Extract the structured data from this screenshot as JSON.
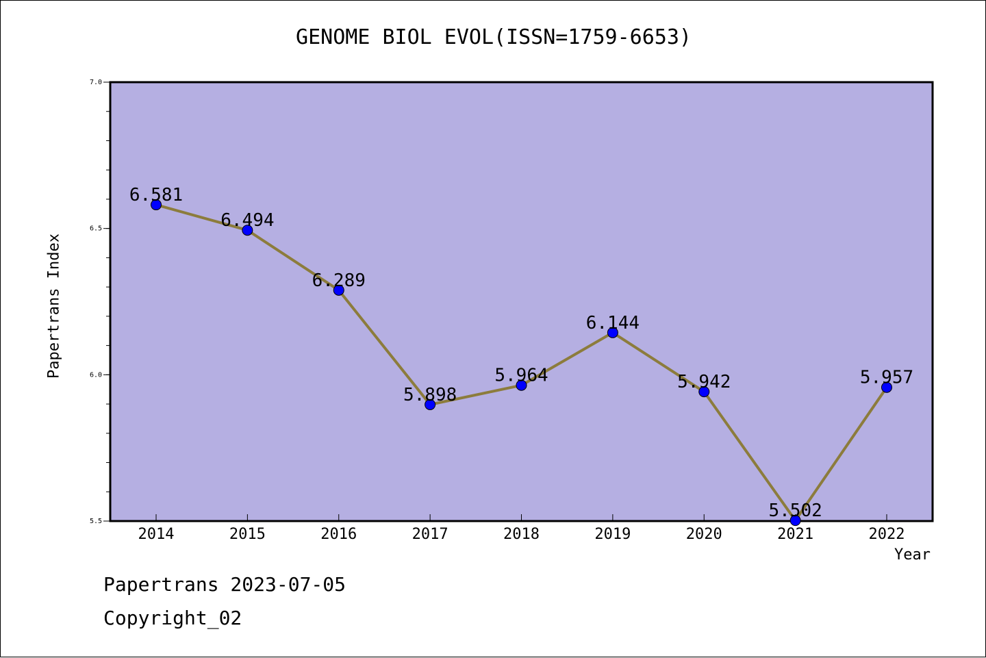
{
  "chart_data": {
    "type": "line",
    "title": "GENOME BIOL EVOL(ISSN=1759-6653)",
    "xlabel": "Year",
    "ylabel": "Papertrans Index",
    "categories": [
      "2014",
      "2015",
      "2016",
      "2017",
      "2018",
      "2019",
      "2020",
      "2021",
      "2022"
    ],
    "values": [
      6.581,
      6.494,
      6.289,
      5.898,
      5.964,
      6.144,
      5.942,
      5.502,
      5.957
    ],
    "data_labels": [
      "6.581",
      "6.494",
      "6.289",
      "5.898",
      "5.964",
      "6.144",
      "5.942",
      "5.502",
      "5.957"
    ],
    "ylim": [
      5.5,
      7.0
    ],
    "yticks": [
      "5.5",
      "6.0",
      "6.5",
      "7.0"
    ],
    "grid": false,
    "colors": {
      "plot_background": "#b5afe2",
      "line": "#8c7c3c",
      "marker": "#0000ff"
    }
  },
  "footer": {
    "line1": "Papertrans 2023-07-05",
    "line2": "Copyright_02"
  }
}
